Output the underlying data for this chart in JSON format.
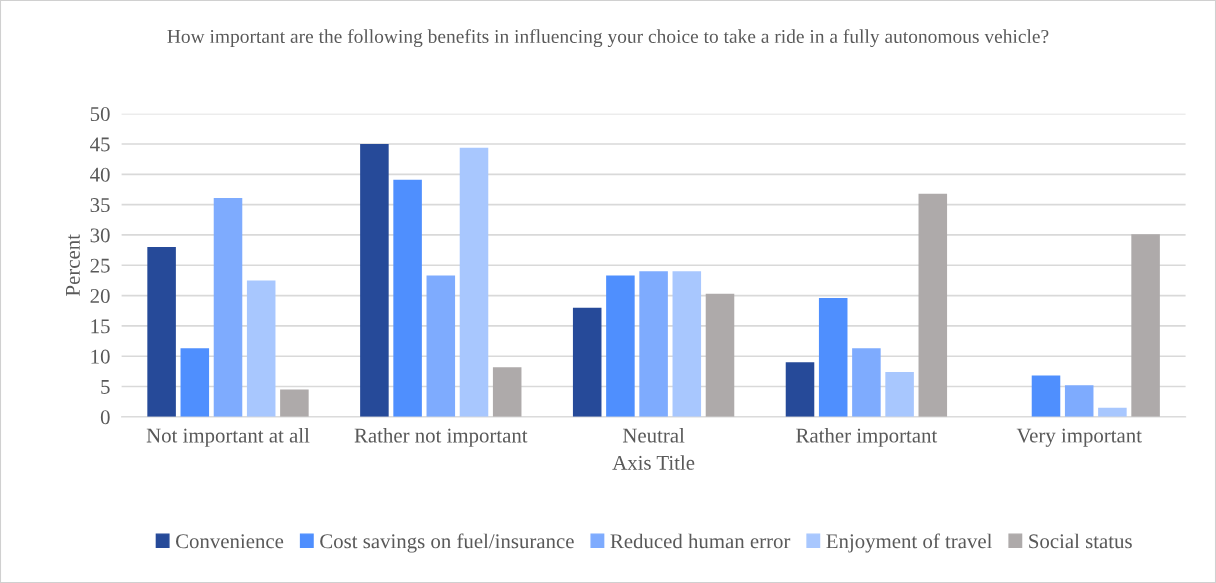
{
  "chart_data": {
    "type": "bar",
    "title": "How important are the following benefits in influencing your choice to take a ride in a fully autonomous vehicle?",
    "xlabel": "Axis Title",
    "ylabel": "Percent",
    "categories": [
      "Not important at all",
      "Rather not important",
      "Neutral",
      "Rather important",
      "Very important"
    ],
    "series": [
      {
        "name": "Convenience",
        "color": "#264a99",
        "values": [
          28,
          45,
          18,
          9,
          0
        ]
      },
      {
        "name": "Cost savings on fuel/insurance",
        "color": "#4f8ffe",
        "values": [
          11.3,
          39.1,
          23.3,
          19.6,
          6.8
        ]
      },
      {
        "name": "Reduced human error",
        "color": "#7eabfe",
        "values": [
          36.1,
          23.3,
          24,
          11.3,
          5.2
        ]
      },
      {
        "name": "Enjoyment of travel",
        "color": "#a8c7fe",
        "values": [
          22.5,
          44.4,
          24,
          7.4,
          1.5
        ]
      },
      {
        "name": "Social status",
        "color": "#aeaaaa",
        "values": [
          4.5,
          8.2,
          20.3,
          36.8,
          30.1
        ]
      }
    ],
    "ylim": [
      0,
      50
    ],
    "yticks": [
      0,
      5,
      10,
      15,
      20,
      25,
      30,
      35,
      40,
      45,
      50
    ],
    "grid": "y",
    "legend": "bottom"
  }
}
